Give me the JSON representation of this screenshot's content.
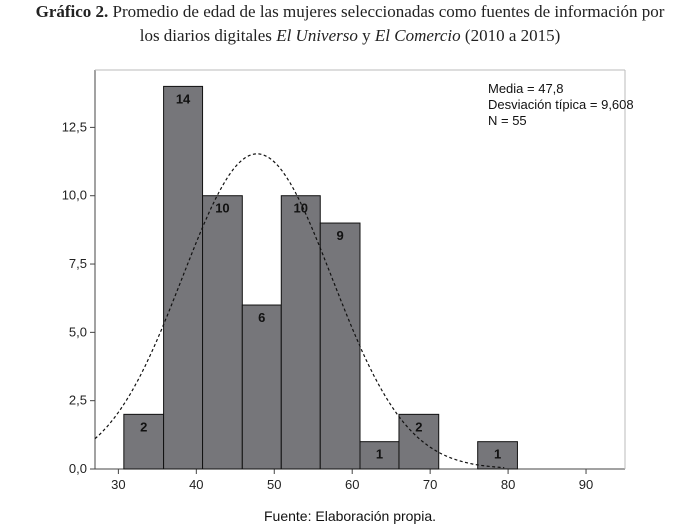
{
  "caption": {
    "label": "Gráfico 2.",
    "text_a": " Promedio de edad de las mujeres seleccionadas como fuentes de información por",
    "text_b": "los diarios digitales ",
    "paper1": "El Universo",
    "text_c": " y ",
    "paper2": "El Comercio",
    "text_d": " (2010 a 2015)"
  },
  "source": "Fuente: Elaboración propia.",
  "chart_data": {
    "type": "bar",
    "x_ticks": [
      30,
      40,
      50,
      60,
      70,
      80,
      90
    ],
    "y_ticks": [
      "0,0",
      "2,5",
      "5,0",
      "7,5",
      "10,0",
      "12,5"
    ],
    "y_tick_values": [
      0,
      2.5,
      5,
      7.5,
      10,
      12.5
    ],
    "xlim": [
      27,
      95
    ],
    "ylim": [
      0,
      14.6
    ],
    "bars": [
      {
        "x0": 30.7,
        "x1": 35.8,
        "value": 2,
        "label": "2"
      },
      {
        "x0": 35.8,
        "x1": 40.8,
        "value": 14,
        "label": "14"
      },
      {
        "x0": 40.8,
        "x1": 45.9,
        "value": 10,
        "label": "10"
      },
      {
        "x0": 45.9,
        "x1": 50.9,
        "value": 6,
        "label": "6"
      },
      {
        "x0": 50.9,
        "x1": 55.9,
        "value": 10,
        "label": "10"
      },
      {
        "x0": 55.9,
        "x1": 61.0,
        "value": 9,
        "label": "9"
      },
      {
        "x0": 61.0,
        "x1": 66.0,
        "value": 1,
        "label": "1"
      },
      {
        "x0": 66.0,
        "x1": 71.1,
        "value": 2,
        "label": "2"
      },
      {
        "x0": 76.1,
        "x1": 81.2,
        "value": 1,
        "label": "1"
      }
    ],
    "normal_curve": {
      "mean": 47.8,
      "sd": 9.608,
      "n": 55,
      "bin_width": 5.05
    },
    "stats": [
      "Media = 47,8",
      "Desviación típica = 9,608",
      "N = 55"
    ],
    "bar_color": "#76767a",
    "grid": false
  }
}
